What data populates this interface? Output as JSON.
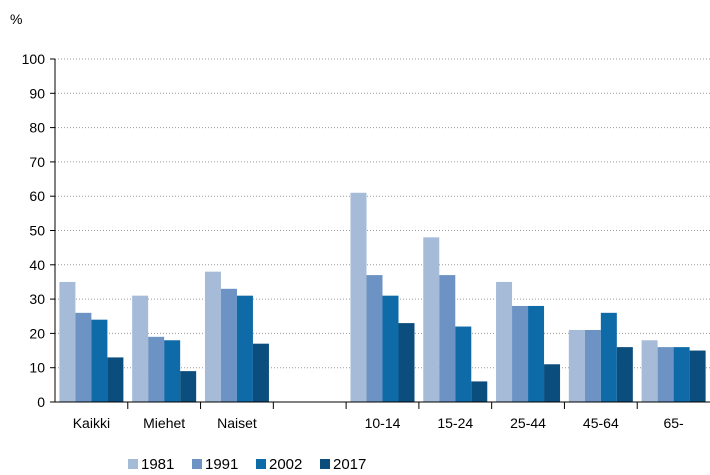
{
  "chart_data": {
    "type": "bar",
    "ylabel": "%",
    "ylim": [
      0,
      100
    ],
    "yticks": [
      0,
      10,
      20,
      30,
      40,
      50,
      60,
      70,
      80,
      90,
      100
    ],
    "grid": "horizontal-dotted",
    "legend_position": "bottom",
    "categories": [
      "Kaikki",
      "Miehet",
      "Naiset",
      "",
      "10-14",
      "15-24",
      "25-44",
      "45-64",
      "65-"
    ],
    "series": [
      {
        "name": "1981",
        "color": "#a6bbd7",
        "values": [
          35,
          31,
          38,
          null,
          61,
          48,
          35,
          21,
          18
        ]
      },
      {
        "name": "1991",
        "color": "#6c93c3",
        "values": [
          26,
          19,
          33,
          null,
          37,
          37,
          28,
          21,
          16
        ]
      },
      {
        "name": "2002",
        "color": "#0f6aa8",
        "values": [
          24,
          18,
          31,
          null,
          31,
          22,
          28,
          26,
          16
        ]
      },
      {
        "name": "2017",
        "color": "#0b4d7d",
        "values": [
          13,
          9,
          17,
          null,
          23,
          6,
          11,
          16,
          15
        ]
      }
    ]
  }
}
